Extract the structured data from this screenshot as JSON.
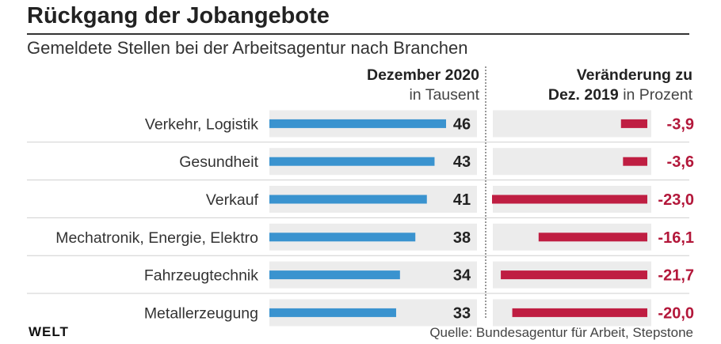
{
  "title": "Rückgang der Jobangebote",
  "subtitle": "Gemeldete Stellen bei der Arbeitsagentur nach Branchen",
  "headers": {
    "left_bold": "Dezember 2020",
    "left_unit": "in Tausent",
    "right_line1": "Veränderung zu",
    "right_line2_bold": "Dez. 2019",
    "right_line2_unit": "in Prozent"
  },
  "brand": "WELT",
  "source": "Quelle: Bundesagentur für Arbeit, Stepstone",
  "colors": {
    "left_bar": "#3a93cf",
    "right_bar": "#bf1e42",
    "track": "#ececec",
    "value_right_text": "#b3173a"
  },
  "chart_data": {
    "type": "bar",
    "orientation": "horizontal",
    "title": "Rückgang der Jobangebote",
    "categories": [
      "Verkehr, Logistik",
      "Gesundheit",
      "Verkauf",
      "Mechatronik, Energie, Elektro",
      "Fahrzeugtechnik",
      "Metallerzeugung"
    ],
    "series": [
      {
        "name": "Dezember 2020 in Tausent",
        "values": [
          46,
          43,
          41,
          38,
          34,
          33
        ],
        "labels": [
          "46",
          "43",
          "41",
          "38",
          "34",
          "33"
        ],
        "xlim": [
          0,
          46
        ]
      },
      {
        "name": "Veränderung zu Dez. 2019 in Prozent",
        "values": [
          -3.9,
          -3.6,
          -23.0,
          -16.1,
          -21.7,
          -20.0
        ],
        "labels": [
          "-3,9",
          "-3,6",
          "-23,0",
          "-16,1",
          "-21,7",
          "-20,0"
        ],
        "xlim": [
          -23,
          0
        ]
      }
    ]
  }
}
